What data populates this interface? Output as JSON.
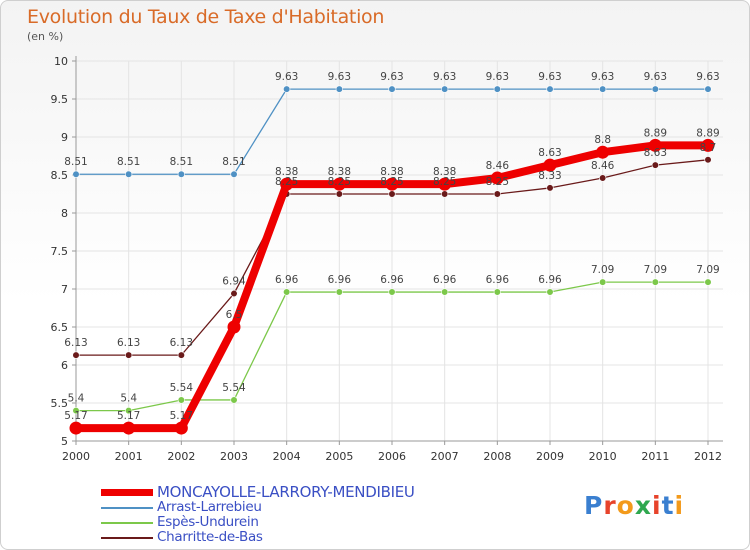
{
  "header": {
    "title": "Evolution du Taux de Taxe d'Habitation",
    "unit": "(en %)"
  },
  "logo": {
    "text": "Proxiti"
  },
  "chart_data": {
    "type": "line",
    "title": "Evolution du Taux de Taxe d'Habitation",
    "ylabel": "(en %)",
    "xlabel": "",
    "ylim": [
      5,
      10
    ],
    "yticks": [
      "5",
      "5.5",
      "6",
      "6.5",
      "7",
      "7.5",
      "8",
      "8.5",
      "9",
      "9.5",
      "10"
    ],
    "grid": true,
    "legend_position": "bottom-left",
    "x": [
      "2000",
      "2001",
      "2002",
      "2003",
      "2004",
      "2005",
      "2006",
      "2007",
      "2008",
      "2009",
      "2010",
      "2011",
      "2012"
    ],
    "series": [
      {
        "name": "MONCAYOLLE-LARRORY-MENDIBIEU",
        "color": "#ee0000",
        "values": [
          5.17,
          5.17,
          5.17,
          6.5,
          8.38,
          8.38,
          8.38,
          8.38,
          8.46,
          8.63,
          8.8,
          8.89,
          8.89
        ],
        "labels": [
          "5.17",
          "5.17",
          "5.17",
          "6.5",
          "8.38",
          "8.38",
          "8.38",
          "8.38",
          "8.46",
          "8.63",
          "8.8",
          "8.89",
          "8.89"
        ]
      },
      {
        "name": "Arrast-Larrebieu",
        "color": "#4f91c4",
        "values": [
          8.51,
          8.51,
          8.51,
          8.51,
          9.63,
          9.63,
          9.63,
          9.63,
          9.63,
          9.63,
          9.63,
          9.63,
          9.63
        ],
        "labels": [
          "8.51",
          "8.51",
          "8.51",
          "8.51",
          "9.63",
          "9.63",
          "9.63",
          "9.63",
          "9.63",
          "9.63",
          "9.63",
          "9.63",
          "9.63"
        ]
      },
      {
        "name": "Espès-Undurein",
        "color": "#7cc84a",
        "values": [
          5.4,
          5.4,
          5.54,
          5.54,
          6.96,
          6.96,
          6.96,
          6.96,
          6.96,
          6.96,
          7.09,
          7.09,
          7.09
        ],
        "labels": [
          "5.4",
          "5.4",
          "5.54",
          "5.54",
          "6.96",
          "6.96",
          "6.96",
          "6.96",
          "6.96",
          "6.96",
          "7.09",
          "7.09",
          "7.09"
        ]
      },
      {
        "name": "Charritte-de-Bas",
        "color": "#6a1a1a",
        "values": [
          6.13,
          6.13,
          6.13,
          6.94,
          8.25,
          8.25,
          8.25,
          8.25,
          8.25,
          8.33,
          8.46,
          8.63,
          8.7
        ],
        "labels": [
          "6.13",
          "6.13",
          "6.13",
          "6.94",
          "8.25",
          "8.25",
          "8.25",
          "8.25",
          "8.25",
          "8.33",
          "8.46",
          "8.63",
          "8.7"
        ]
      }
    ]
  }
}
